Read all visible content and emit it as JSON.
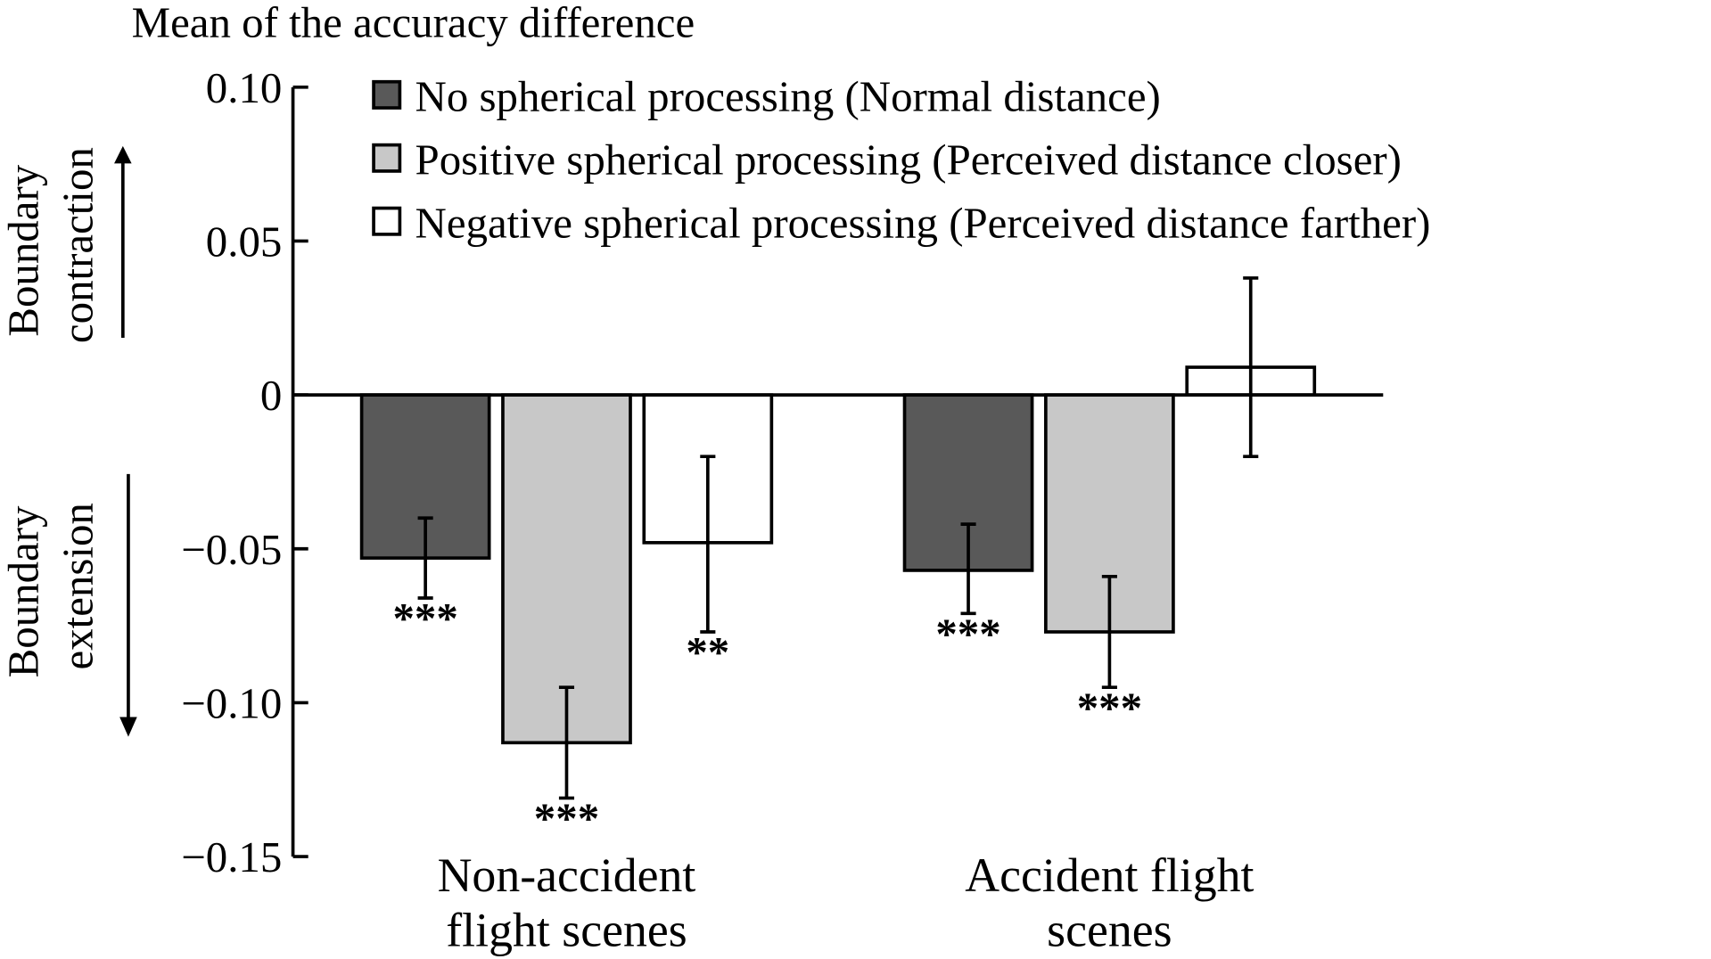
{
  "chart_data": {
    "type": "bar",
    "title": "Mean of the accuracy difference",
    "xlabel": "",
    "ylabel_up": "Boundary contraction",
    "ylabel_down": "Boundary extension",
    "ylim": [
      -0.15,
      0.1
    ],
    "yticks": [
      0.1,
      0.05,
      0,
      -0.05,
      -0.1,
      -0.15
    ],
    "ytick_labels": [
      "0.10",
      "0.05",
      "0",
      "−0.05",
      "−0.10",
      "−0.15"
    ],
    "grid": false,
    "legend_position": "top",
    "categories": [
      {
        "line1": "Non-accident",
        "line2": "flight scenes"
      },
      {
        "line1": "Accident flight",
        "line2": "scenes"
      }
    ],
    "series": [
      {
        "name": "No spherical processing (Normal distance)",
        "color": "#595959",
        "values": [
          -0.053,
          -0.057
        ],
        "err_low": [
          -0.066,
          -0.071
        ],
        "err_high": [
          -0.04,
          -0.042
        ],
        "sig": [
          "***",
          "***"
        ]
      },
      {
        "name": "Positive spherical processing (Perceived distance closer)",
        "color": "#c8c8c8",
        "values": [
          -0.113,
          -0.077
        ],
        "err_low": [
          -0.131,
          -0.095
        ],
        "err_high": [
          -0.095,
          -0.059
        ],
        "sig": [
          "***",
          "***"
        ]
      },
      {
        "name": "Negative spherical processing (Perceived distance farther)",
        "color": "#ffffff",
        "values": [
          -0.048,
          0.009
        ],
        "err_low": [
          -0.077,
          -0.02
        ],
        "err_high": [
          -0.02,
          0.038
        ],
        "sig": [
          "**",
          ""
        ]
      }
    ]
  }
}
